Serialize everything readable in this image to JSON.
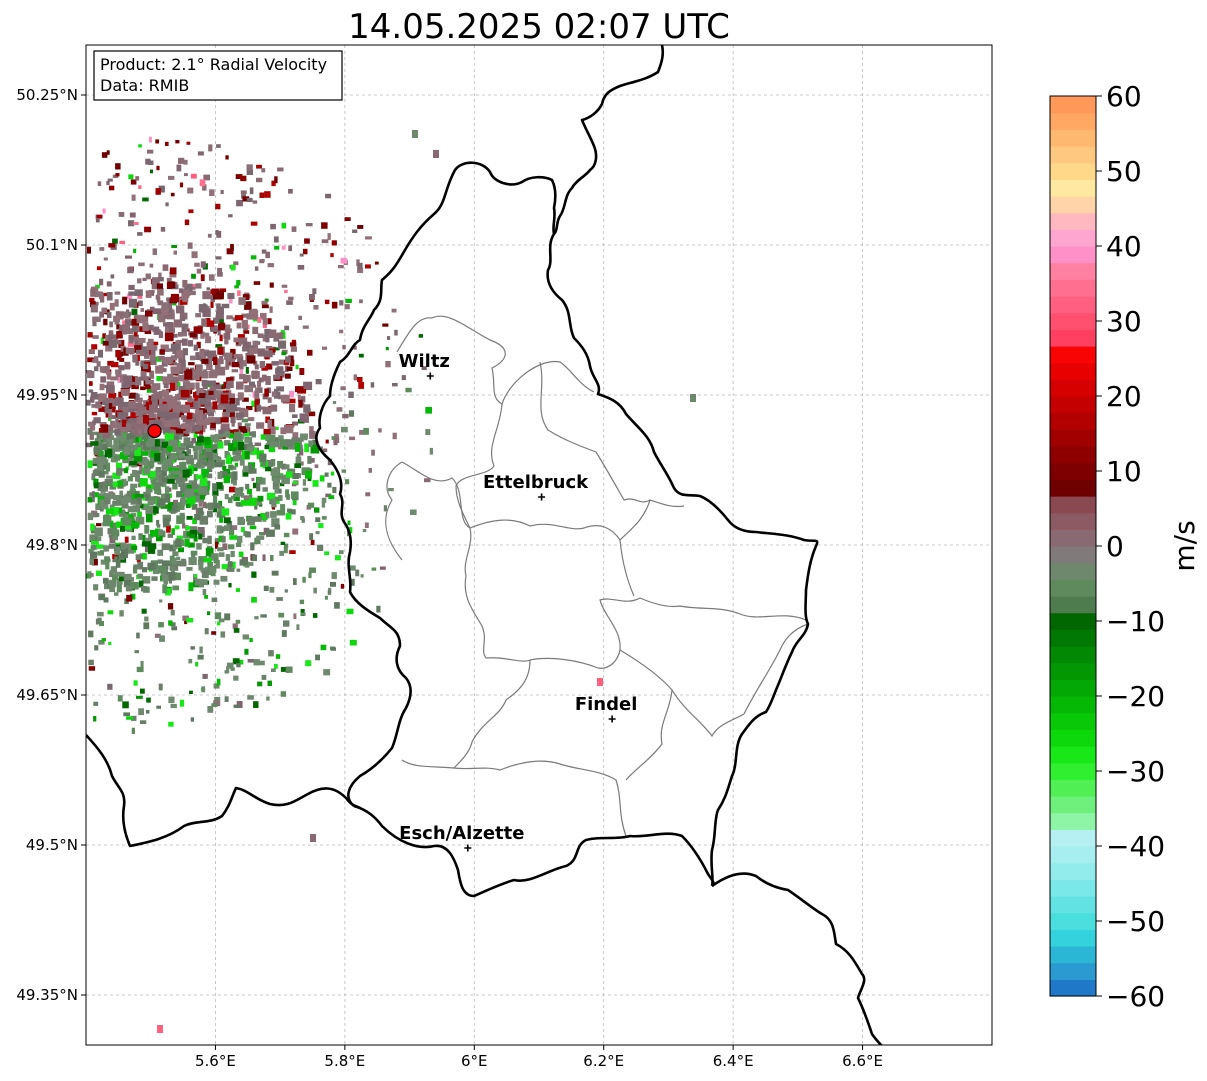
{
  "title": "14.05.2025 02:07 UTC",
  "info_box": {
    "product": "Product: 2.1° Radial Velocity",
    "data": "Data: RMIB"
  },
  "map": {
    "lon_range": [
      5.4,
      6.8
    ],
    "lat_range": [
      49.3,
      50.3
    ],
    "lon_ticks": [
      {
        "value": 5.6,
        "label": "5.6°E"
      },
      {
        "value": 5.8,
        "label": "5.8°E"
      },
      {
        "value": 6.0,
        "label": "6°E"
      },
      {
        "value": 6.2,
        "label": "6.2°E"
      },
      {
        "value": 6.4,
        "label": "6.4°E"
      },
      {
        "value": 6.6,
        "label": "6.6°E"
      }
    ],
    "lat_ticks": [
      {
        "value": 50.25,
        "label": "50.25°N"
      },
      {
        "value": 50.1,
        "label": "50.1°N"
      },
      {
        "value": 49.95,
        "label": "49.95°N"
      },
      {
        "value": 49.8,
        "label": "49.8°N"
      },
      {
        "value": 49.65,
        "label": "49.65°N"
      },
      {
        "value": 49.5,
        "label": "49.5°N"
      },
      {
        "value": 49.35,
        "label": "49.35°N"
      }
    ],
    "gridlines": true,
    "radar_site": {
      "lon": 5.506,
      "lat": 49.914,
      "color": "#ff0000"
    },
    "cities": [
      {
        "name": "Wiltz",
        "lon": 5.932,
        "lat": 49.969
      },
      {
        "name": "Ettelbruck",
        "lon": 6.104,
        "lat": 49.848
      },
      {
        "name": "Findel",
        "lon": 6.213,
        "lat": 49.626
      },
      {
        "name": "Esch/Alzette",
        "lon": 5.99,
        "lat": 49.497
      }
    ]
  },
  "colorbar": {
    "label": "m/s",
    "range": [
      -60,
      60
    ],
    "ticks": [
      "60",
      "50",
      "40",
      "30",
      "20",
      "10",
      "0",
      "−10",
      "−20",
      "−30",
      "−40",
      "−50",
      "−60"
    ],
    "colors": [
      "#1f78c8",
      "#2a9ad0",
      "#2cb6d6",
      "#33d2dc",
      "#4adede",
      "#62e2e2",
      "#7ae8e8",
      "#92ecec",
      "#a6eef0",
      "#b6f0f2",
      "#8ef5a6",
      "#6ff07c",
      "#50f055",
      "#30ee30",
      "#18e818",
      "#0cd80c",
      "#08c808",
      "#06b806",
      "#04a804",
      "#039803",
      "#028802",
      "#017801",
      "#016801",
      "#4e7c4e",
      "#5e8a5e",
      "#6e886e",
      "#807a7a",
      "#8a6a72",
      "#8c5a62",
      "#8a4850",
      "#6e0000",
      "#7e0000",
      "#8e0000",
      "#a00000",
      "#b20000",
      "#c40000",
      "#d60000",
      "#e80000",
      "#f80404",
      "#ff4060",
      "#ff5070",
      "#ff6080",
      "#ff7090",
      "#ff80a0",
      "#ff90c8",
      "#ffa6d0",
      "#ffb8c0",
      "#ffd4a8",
      "#ffe8a0",
      "#ffd88a",
      "#ffc880",
      "#ffb870",
      "#ffa864",
      "#ff9858"
    ]
  }
}
